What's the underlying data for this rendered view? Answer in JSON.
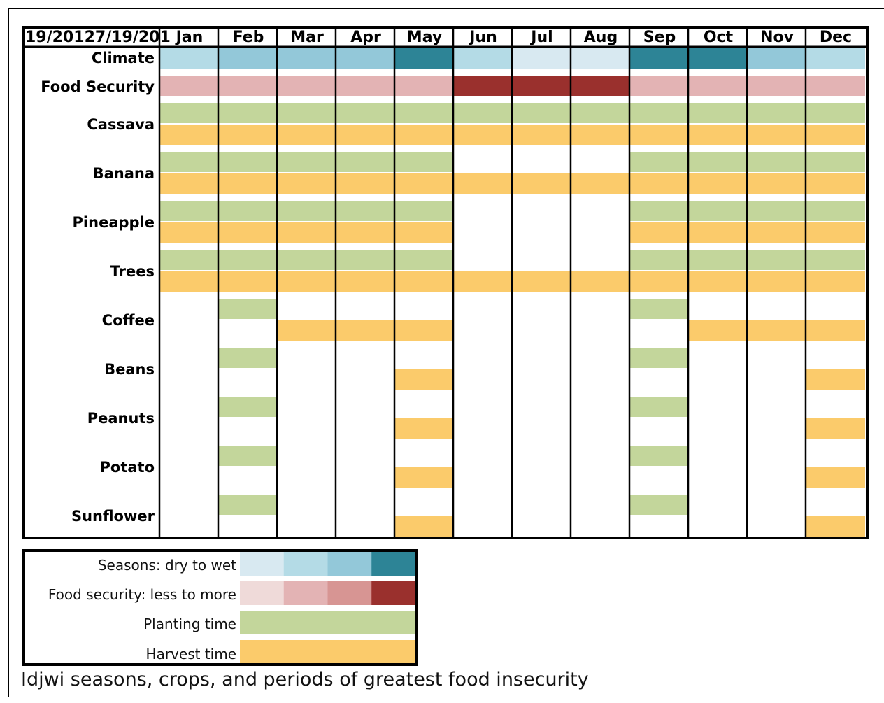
{
  "header": {
    "corner_label": "19/20127/19/201",
    "months": [
      "Jan",
      "Feb",
      "Mar",
      "Apr",
      "May",
      "Jun",
      "Jul",
      "Aug",
      "Sep",
      "Oct",
      "Nov",
      "Dec"
    ]
  },
  "colors": {
    "climate_levels": [
      "#d8e9f1",
      "#b4dbe6",
      "#93c8d9",
      "#2d8496"
    ],
    "food_levels": [
      "#efdad9",
      "#e3b3b4",
      "#d79593",
      "#9a302d"
    ],
    "planting": "#c3d69b",
    "harvest": "#fbcb6b"
  },
  "rows": {
    "climate": {
      "label": "Climate",
      "levels": [
        2,
        3,
        3,
        3,
        4,
        2,
        1,
        1,
        4,
        4,
        3,
        2
      ]
    },
    "food_security": {
      "label": "Food Security",
      "levels": [
        2,
        2,
        2,
        2,
        2,
        4,
        4,
        4,
        2,
        2,
        2,
        2
      ]
    },
    "crops": [
      {
        "label": "Cassava",
        "planting": [
          1,
          1,
          1,
          1,
          1,
          1,
          1,
          1,
          1,
          1,
          1,
          1
        ],
        "harvest": [
          1,
          1,
          1,
          1,
          1,
          1,
          1,
          1,
          1,
          1,
          1,
          1
        ]
      },
      {
        "label": "Banana",
        "planting": [
          1,
          1,
          1,
          1,
          1,
          0,
          0,
          0,
          1,
          1,
          1,
          1
        ],
        "harvest": [
          1,
          1,
          1,
          1,
          1,
          1,
          1,
          1,
          1,
          1,
          1,
          1
        ]
      },
      {
        "label": "Pineapple",
        "planting": [
          1,
          1,
          1,
          1,
          1,
          0,
          0,
          0,
          1,
          1,
          1,
          1
        ],
        "harvest": [
          1,
          1,
          1,
          1,
          1,
          0,
          0,
          0,
          1,
          1,
          1,
          1
        ]
      },
      {
        "label": "Trees",
        "planting": [
          1,
          1,
          1,
          1,
          1,
          0,
          0,
          0,
          1,
          1,
          1,
          1
        ],
        "harvest": [
          1,
          1,
          1,
          1,
          1,
          1,
          1,
          1,
          1,
          1,
          1,
          1
        ]
      },
      {
        "label": "Coffee",
        "planting": [
          0,
          1,
          0,
          0,
          0,
          0,
          0,
          0,
          1,
          0,
          0,
          0
        ],
        "harvest": [
          0,
          0,
          1,
          1,
          1,
          0,
          0,
          0,
          0,
          1,
          1,
          1
        ]
      },
      {
        "label": "Beans",
        "planting": [
          0,
          1,
          0,
          0,
          0,
          0,
          0,
          0,
          1,
          0,
          0,
          0
        ],
        "harvest": [
          0,
          0,
          0,
          0,
          1,
          0,
          0,
          0,
          0,
          0,
          0,
          1
        ]
      },
      {
        "label": "Peanuts",
        "planting": [
          0,
          1,
          0,
          0,
          0,
          0,
          0,
          0,
          1,
          0,
          0,
          0
        ],
        "harvest": [
          0,
          0,
          0,
          0,
          1,
          0,
          0,
          0,
          0,
          0,
          0,
          1
        ]
      },
      {
        "label": "Potato",
        "planting": [
          0,
          1,
          0,
          0,
          0,
          0,
          0,
          0,
          1,
          0,
          0,
          0
        ],
        "harvest": [
          0,
          0,
          0,
          0,
          1,
          0,
          0,
          0,
          0,
          0,
          0,
          1
        ]
      },
      {
        "label": "Sunflower",
        "planting": [
          0,
          1,
          0,
          0,
          0,
          0,
          0,
          0,
          1,
          0,
          0,
          0
        ],
        "harvest": [
          0,
          0,
          0,
          0,
          1,
          0,
          0,
          0,
          0,
          0,
          0,
          1
        ]
      }
    ]
  },
  "legend": {
    "seasons_label": "Seasons: dry to wet",
    "food_label": "Food security: less to more",
    "planting_label": "Planting time",
    "harvest_label": "Harvest time"
  },
  "caption": "Idjwi seasons, crops, and periods of greatest food insecurity"
}
